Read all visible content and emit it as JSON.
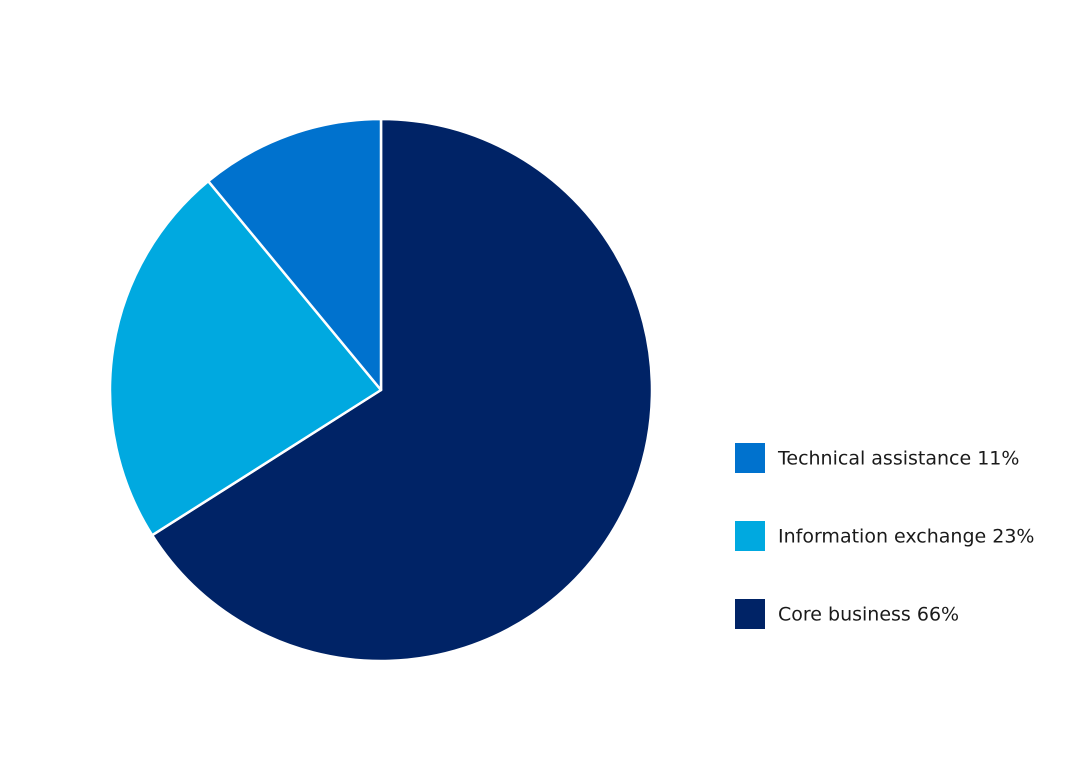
{
  "chart_data": {
    "type": "pie",
    "categories": [
      "Technical assistance 11%",
      "Information exchange 23%",
      "Core business 66%"
    ],
    "values": [
      11,
      23,
      66
    ],
    "colors": [
      "#0072ce",
      "#00a9e0",
      "#002366"
    ]
  }
}
